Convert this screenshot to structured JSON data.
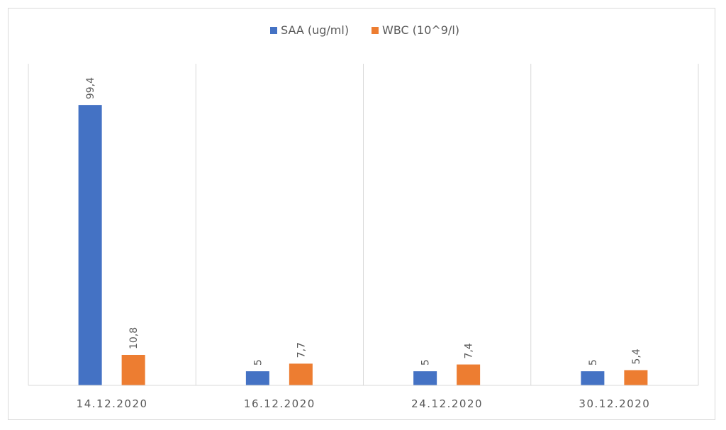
{
  "chart_data": {
    "type": "bar",
    "title": "",
    "xlabel": "",
    "ylabel": "",
    "categories": [
      "14.12.2020",
      "16.12.2020",
      "24.12.2020",
      "30.12.2020"
    ],
    "series": [
      {
        "name": "SAA (ug/ml)",
        "color": "#4472c4",
        "values": [
          99.4,
          5,
          5,
          5
        ],
        "labels": [
          "99,4",
          "5",
          "5",
          "5"
        ]
      },
      {
        "name": "WBC (10^9/l)",
        "color": "#ed7d31",
        "values": [
          10.8,
          7.7,
          7.4,
          5.4
        ],
        "labels": [
          "10,8",
          "7,7",
          "7,4",
          "5,4"
        ]
      }
    ],
    "ylim": [
      0,
      114
    ],
    "y_axis_visible": false,
    "grid": "vertical category separators",
    "legend_position": "top-center",
    "data_labels_rotated": true
  }
}
